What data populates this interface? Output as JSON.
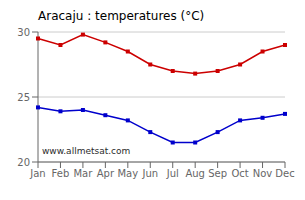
{
  "chart_data": {
    "type": "line",
    "title": "Aracaju : temperatures (°C)",
    "categories": [
      "Jan",
      "Feb",
      "Mar",
      "Apr",
      "May",
      "Jun",
      "Jul",
      "Aug",
      "Sep",
      "Oct",
      "Nov",
      "Dec"
    ],
    "series": [
      {
        "color": "#cc0000",
        "values": [
          29.5,
          29.0,
          29.8,
          29.2,
          28.5,
          27.5,
          27.0,
          26.8,
          27.0,
          27.5,
          28.5,
          29.0
        ],
        "marker": "square"
      },
      {
        "color": "#0000cc",
        "values": [
          24.2,
          23.9,
          24.0,
          23.6,
          23.2,
          22.3,
          21.5,
          21.5,
          22.3,
          23.2,
          23.4,
          23.7
        ],
        "marker": "square"
      }
    ],
    "ylim": [
      20,
      30
    ],
    "yticks": [
      20,
      25,
      30
    ],
    "grid": true,
    "annotation": "www.allmetsat.com"
  }
}
